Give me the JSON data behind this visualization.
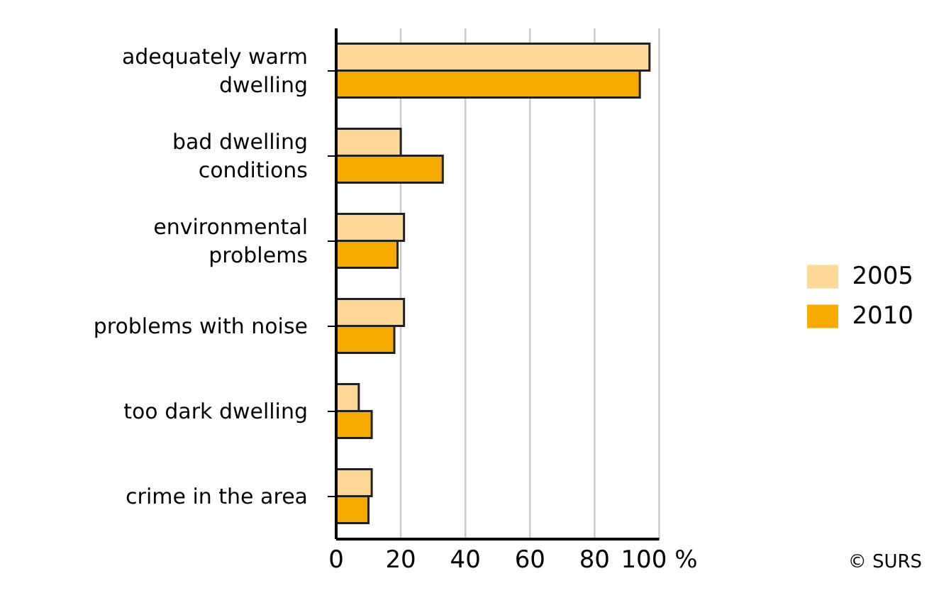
{
  "chart_data": {
    "type": "bar",
    "orientation": "horizontal",
    "categories": [
      "adequately warm dwelling",
      "bad dwelling conditions",
      "environmental problems",
      "problems with noise",
      "too dark dwelling",
      "crime in the area"
    ],
    "series": [
      {
        "name": "2005",
        "color": "#fed899",
        "values": [
          97,
          20,
          21,
          21,
          7,
          11
        ]
      },
      {
        "name": "2010",
        "color": "#f7ab00",
        "values": [
          94,
          33,
          19,
          18,
          11,
          10
        ]
      }
    ],
    "xlim": [
      0,
      100
    ],
    "xticks": [
      0,
      20,
      40,
      60,
      80,
      {
        "value": 100,
        "label": "100 %"
      }
    ],
    "grid": "x",
    "legend": "right",
    "annotations": [
      "© SURS"
    ]
  }
}
